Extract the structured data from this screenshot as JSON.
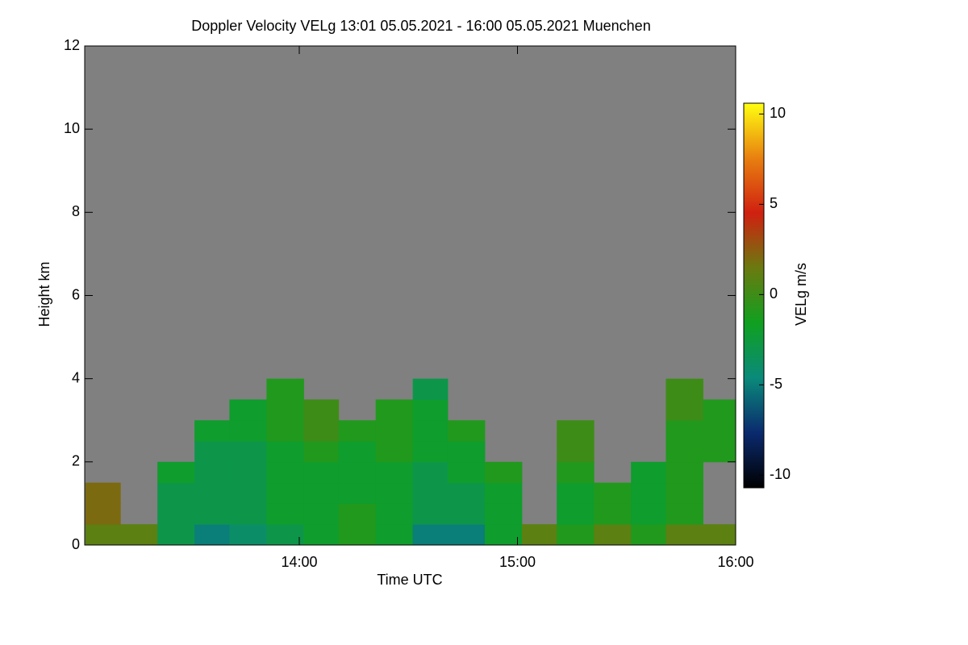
{
  "chart_data": {
    "type": "heatmap",
    "title": "Doppler Velocity VELg   13:01 05.05.2021 - 16:00 05.05.2021 Muenchen",
    "x_label": "Time UTC",
    "y_label": "Height km",
    "colorbar_label": "VELg m/s",
    "xlim": [
      13.0167,
      16.0
    ],
    "xticks": [
      {
        "value": 14,
        "label": "14:00"
      },
      {
        "value": 15,
        "label": "15:00"
      },
      {
        "value": 16,
        "label": "16:00"
      }
    ],
    "ylim": [
      0,
      12
    ],
    "yticks": [
      0,
      2,
      4,
      6,
      8,
      10,
      12
    ],
    "zlim": [
      -10.7,
      10.6
    ],
    "zticks": [
      -10,
      -5,
      0,
      5,
      10
    ],
    "background": "#808080",
    "colormap": [
      "#000000",
      "#0a2a6e",
      "#0a8a7a",
      "#10a020",
      "#6a7a10",
      "#d02010",
      "#e88010",
      "#ffff10"
    ],
    "x_bins": [
      13.02,
      13.18,
      13.35,
      13.52,
      13.68,
      13.85,
      14.02,
      14.18,
      14.35,
      14.52,
      14.68,
      14.85,
      15.02,
      15.18,
      15.35,
      15.52,
      15.68,
      15.85,
      16.0
    ],
    "y_bins": [
      0,
      0.5,
      1,
      1.5,
      2,
      2.5,
      3,
      3.5,
      4
    ],
    "z": [
      [
        1,
        1,
        -3,
        -5,
        -4,
        -3,
        -2,
        -1,
        -2,
        -5,
        -5,
        -2,
        1,
        -1,
        1,
        -1,
        1,
        1
      ],
      [
        2,
        null,
        -3,
        -3,
        -3,
        -2,
        -2,
        -1,
        -2,
        -3,
        -3,
        -2,
        null,
        -2,
        -1,
        -2,
        -1,
        null
      ],
      [
        2,
        null,
        -3,
        -3,
        -3,
        -2,
        -2,
        -2,
        -2,
        -3,
        -3,
        -2,
        null,
        -2,
        -1,
        -2,
        -1,
        null
      ],
      [
        null,
        null,
        -2,
        -3,
        -3,
        -2,
        -2,
        -2,
        -2,
        -3,
        -2,
        -1,
        null,
        -1,
        null,
        -2,
        -1,
        null
      ],
      [
        null,
        null,
        null,
        -3,
        -3,
        -2,
        -1,
        -2,
        -1,
        -2,
        -2,
        null,
        null,
        0,
        null,
        null,
        -1,
        -1
      ],
      [
        null,
        null,
        null,
        -2,
        -2,
        -1,
        0,
        -1,
        -1,
        -2,
        -1,
        null,
        null,
        0,
        null,
        null,
        -1,
        -1
      ],
      [
        null,
        null,
        null,
        null,
        -2,
        -1,
        0,
        null,
        -1,
        -2,
        null,
        null,
        null,
        null,
        null,
        null,
        0,
        -1
      ],
      [
        null,
        null,
        null,
        null,
        null,
        -1,
        null,
        null,
        null,
        -3,
        null,
        null,
        null,
        null,
        null,
        null,
        0,
        null
      ]
    ]
  }
}
